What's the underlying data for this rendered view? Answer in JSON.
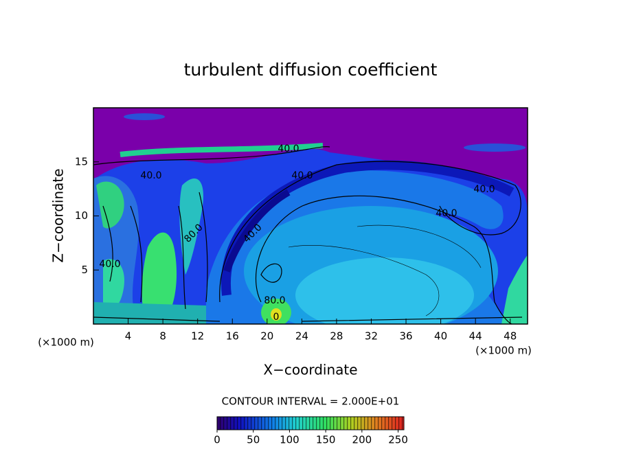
{
  "chart_data": {
    "type": "contour",
    "title": "turbulent diffusion coefficient",
    "xlabel": "X−coordinate",
    "ylabel": "Z−coordinate",
    "xunit": "(×1000 m)",
    "yunit": "(×1000 m)",
    "xlim": [
      0,
      50
    ],
    "xticks": [
      4,
      8,
      12,
      16,
      20,
      24,
      28,
      32,
      36,
      40,
      44,
      48
    ],
    "ylim": [
      0,
      20
    ],
    "yticks": [
      5,
      10,
      15
    ],
    "contour_labels": [
      "40.0",
      "40.0",
      "40.0",
      "40.0",
      "40.0",
      "40.0",
      "80.0",
      "80.0",
      "0",
      "40.0"
    ],
    "contour_interval": "CONTOUR INTERVAL = 2.000E+01",
    "colorbar": {
      "lim": [
        0,
        258
      ],
      "ticks": [
        0,
        50,
        100,
        150,
        200,
        250
      ]
    }
  }
}
